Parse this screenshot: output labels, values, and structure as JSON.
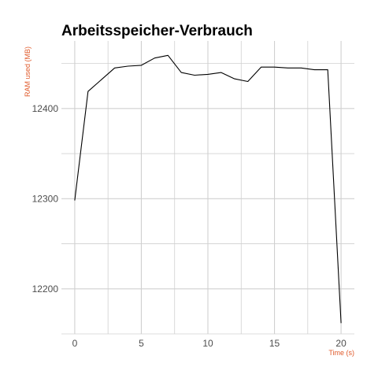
{
  "chart_data": {
    "type": "line",
    "title": "Arbeitsspeicher-Verbrauch",
    "xlabel": "Time (s)",
    "ylabel": "RAM used (MB)",
    "axis_title_color": "#e05a2b",
    "line_color": "#000000",
    "grid_color": "#d0d0d0",
    "xlim": [
      -1,
      21
    ],
    "ylim": [
      12150,
      12475
    ],
    "x_ticks": [
      0,
      5,
      10,
      15,
      20
    ],
    "y_ticks": [
      12200,
      12300,
      12400
    ],
    "x_tick_labels": [
      "0",
      "5",
      "10",
      "15",
      "20"
    ],
    "y_tick_labels": [
      "12200",
      "12300",
      "12400"
    ],
    "grid": true,
    "series": [
      {
        "x": [
          0,
          1,
          2,
          3,
          4,
          5,
          6,
          7,
          8,
          9,
          10,
          11,
          12,
          13,
          14,
          15,
          16,
          17,
          18,
          19,
          20
        ],
        "y": [
          12298,
          12419,
          12432,
          12445,
          12447,
          12448,
          12456,
          12459,
          12440,
          12437,
          12438,
          12440,
          12433,
          12430,
          12446,
          12446,
          12445,
          12445,
          12443,
          12443,
          12162
        ]
      }
    ]
  }
}
